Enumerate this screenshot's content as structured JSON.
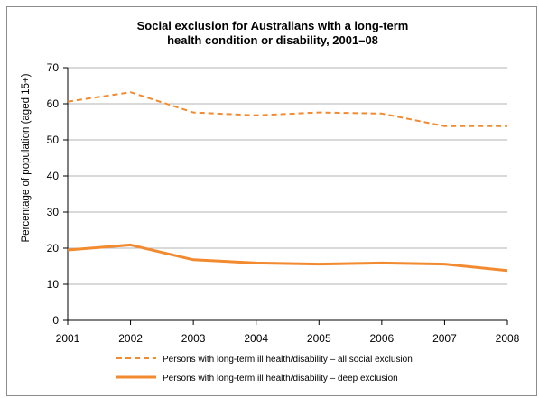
{
  "chart_data": {
    "type": "line",
    "title": "Social exclusion for Australians with a long-term health condition or disability, 2001–08",
    "title_lines": [
      "Social exclusion for Australians with a long-term",
      "health condition or disability, 2001–08"
    ],
    "xlabel": "",
    "ylabel": "Percentage of population (aged 15+)",
    "categories": [
      "2001",
      "2002",
      "2003",
      "2004",
      "2005",
      "2006",
      "2007",
      "2008"
    ],
    "ylim": [
      0,
      70
    ],
    "yticks": [
      0,
      10,
      20,
      30,
      40,
      50,
      60,
      70
    ],
    "ytick_labels": [
      "0",
      "10",
      "20",
      "30",
      "40",
      "50",
      "60",
      "70"
    ],
    "grid": "horizontal",
    "legend_position": "bottom",
    "series": [
      {
        "name": "Persons with long-term ill health/disability – all social exclusion",
        "values": [
          60.6,
          63.2,
          57.6,
          56.8,
          57.6,
          57.3,
          53.8,
          53.8
        ],
        "color": "#f28a30",
        "style": "dashed"
      },
      {
        "name": "Persons with long-term ill health/disability – deep exclusion",
        "values": [
          19.5,
          20.9,
          16.8,
          15.9,
          15.6,
          15.9,
          15.6,
          13.8
        ],
        "color": "#f28a30",
        "style": "solid"
      }
    ]
  }
}
